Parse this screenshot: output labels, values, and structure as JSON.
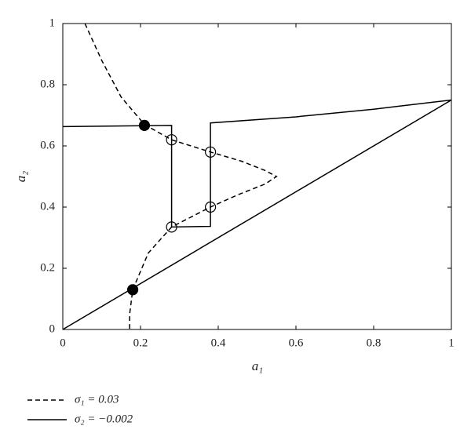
{
  "chart_data": {
    "type": "line",
    "xlabel": "a₁",
    "ylabel": "a₂",
    "xlim": [
      0,
      1
    ],
    "ylim": [
      0,
      1
    ],
    "xticks": [
      0,
      0.2,
      0.4,
      0.6,
      0.8,
      1
    ],
    "yticks": [
      0,
      0.2,
      0.4,
      0.6,
      0.8,
      1
    ],
    "series": [
      {
        "name": "σ₁ = 0.03",
        "color": "#000000",
        "style": "dashed",
        "x": [
          0.057,
          0.1,
          0.15,
          0.21,
          0.28,
          0.38,
          0.46,
          0.52,
          0.55,
          0.52,
          0.45,
          0.38,
          0.28,
          0.22,
          0.18,
          0.172,
          0.172
        ],
        "values": [
          1,
          0.88,
          0.76,
          0.67,
          0.62,
          0.58,
          0.55,
          0.52,
          0.5,
          0.475,
          0.44,
          0.4,
          0.335,
          0.25,
          0.13,
          0.05,
          0
        ]
      },
      {
        "name": "σ₂ = −0.002",
        "color": "#000000",
        "style": "solid",
        "x": [
          0,
          0.28,
          0.28,
          0.38,
          0.38,
          0.6,
          0.8,
          1,
          null,
          0,
          1
        ],
        "values": [
          0.663,
          0.667,
          0.335,
          0.337,
          0.675,
          0.695,
          0.72,
          0.75,
          null,
          0,
          0.75
        ]
      }
    ],
    "points": [
      {
        "x": 0.21,
        "y": 0.667,
        "fill": "#000000"
      },
      {
        "x": 0.18,
        "y": 0.13,
        "fill": "#000000"
      },
      {
        "x": 0.28,
        "y": 0.62,
        "fill": "none"
      },
      {
        "x": 0.38,
        "y": 0.58,
        "fill": "none"
      },
      {
        "x": 0.28,
        "y": 0.335,
        "fill": "none"
      },
      {
        "x": 0.38,
        "y": 0.4,
        "fill": "none"
      }
    ]
  }
}
